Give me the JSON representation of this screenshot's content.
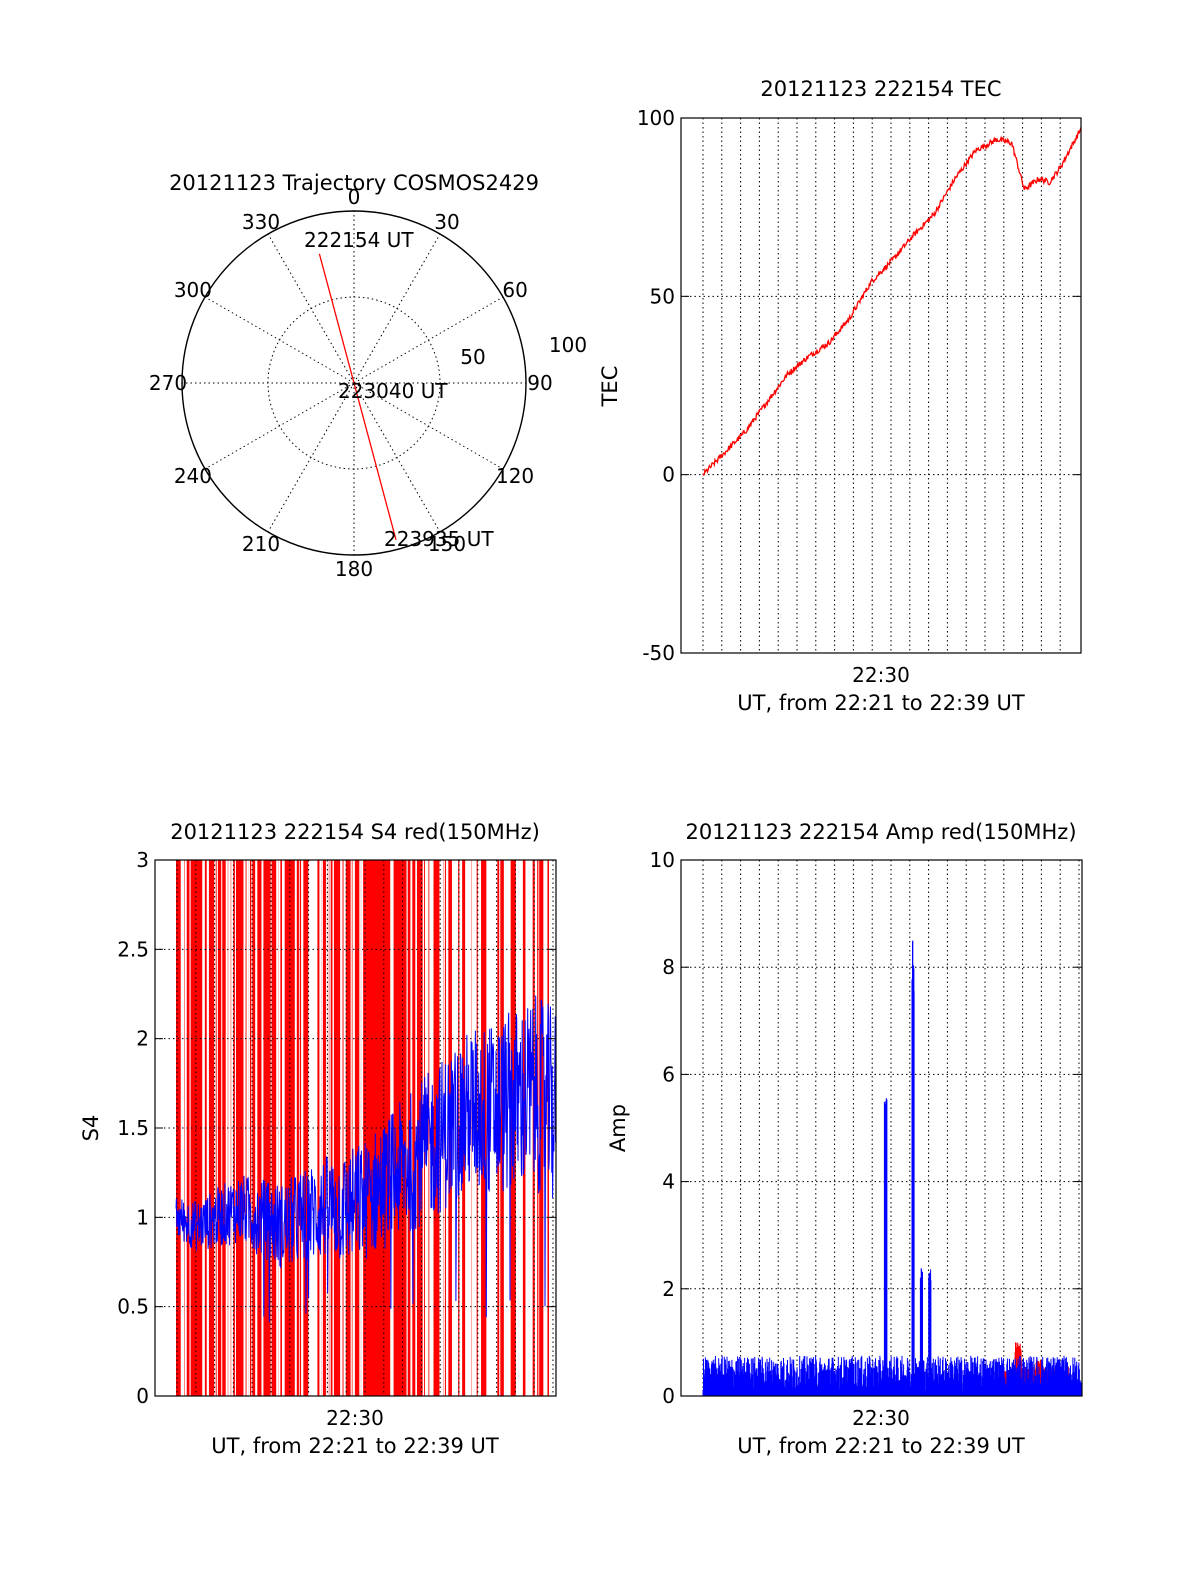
{
  "chart_data": [
    {
      "type": "polar",
      "title": "20121123 Trajectory COSMOS2429",
      "azimuth_labels": [
        "0",
        "30",
        "60",
        "90",
        "120",
        "150",
        "180",
        "210",
        "240",
        "270",
        "300",
        "330"
      ],
      "radial_labels": [
        "50",
        "100"
      ],
      "radial_values": [
        50,
        100
      ],
      "trajectory": {
        "start_label": "222154 UT",
        "mid_label": "223040 UT",
        "end_label": "223935 UT",
        "start": {
          "azimuth": 345,
          "elevation": 20
        },
        "mid": {
          "azimuth": 180,
          "elevation": 88
        },
        "end": {
          "azimuth": 165,
          "elevation": 5
        },
        "color": "#ff0000"
      }
    },
    {
      "type": "line",
      "title": "20121123 222154 TEC",
      "ylabel": "TEC",
      "xlabel": "UT, from 22:21 to 22:39 UT",
      "xtick_label": "22:30",
      "xlim_minutes": [
        0,
        18
      ],
      "ylim": [
        -50,
        100
      ],
      "yticks": [
        -50,
        0,
        50,
        100
      ],
      "series": [
        {
          "color": "#ff0000",
          "x": [
            0,
            1,
            2,
            3,
            4,
            5,
            6,
            7,
            8,
            9,
            10,
            11,
            12,
            13,
            14,
            14.7,
            15.3,
            16,
            16.5,
            17,
            18
          ],
          "y": [
            0,
            6,
            12,
            20,
            28,
            33,
            37,
            44,
            54,
            60,
            67,
            73,
            83,
            91,
            94,
            93,
            80,
            83,
            82,
            86,
            97
          ]
        }
      ]
    },
    {
      "type": "line",
      "title": "20121123 222154 S4 red(150MHz)",
      "ylabel": "S4",
      "xlabel": "UT, from 22:21 to 22:39 UT",
      "xtick_label": "22:30",
      "xlim_minutes": [
        0,
        18
      ],
      "ylim": [
        0,
        3
      ],
      "yticks": [
        0,
        0.5,
        1,
        1.5,
        2,
        2.5,
        3
      ],
      "ytick_labels": [
        "0",
        "0.5",
        "1",
        "1.5",
        "2",
        "2.5",
        "3"
      ],
      "series": [
        {
          "color": "#ff0000",
          "note_values": "spans full range 0 to 3 densely"
        },
        {
          "color": "#0000ff",
          "x": [
            0,
            1,
            2,
            3,
            4,
            5,
            6,
            7,
            8,
            9,
            10,
            11,
            12,
            13,
            14,
            15,
            16,
            17,
            18
          ],
          "y": [
            1.0,
            0.95,
            1.0,
            1.05,
            1.0,
            0.95,
            1.0,
            1.05,
            1.05,
            1.1,
            1.2,
            1.3,
            1.4,
            1.5,
            1.6,
            1.6,
            1.65,
            1.7,
            1.6
          ]
        }
      ]
    },
    {
      "type": "line",
      "title": "20121123 222154 Amp red(150MHz)",
      "ylabel": "Amp",
      "xlabel": "UT, from 22:21 to 22:39 UT",
      "xtick_label": "22:30",
      "xlim_minutes": [
        0,
        18
      ],
      "ylim": [
        0,
        10
      ],
      "yticks": [
        0,
        2,
        4,
        6,
        8,
        10
      ],
      "series": [
        {
          "color": "#0000ff",
          "baseline": 0.5,
          "spikes": [
            {
              "x": 8.7,
              "y": 5.6
            },
            {
              "x": 10.0,
              "y": 8.7
            },
            {
              "x": 10.4,
              "y": 2.4
            },
            {
              "x": 10.8,
              "y": 2.5
            }
          ]
        },
        {
          "color": "#ff0000",
          "bumps": [
            {
              "x": 15.0,
              "y": 1.0
            },
            {
              "x": 16.0,
              "y": 0.7
            }
          ]
        }
      ]
    }
  ]
}
